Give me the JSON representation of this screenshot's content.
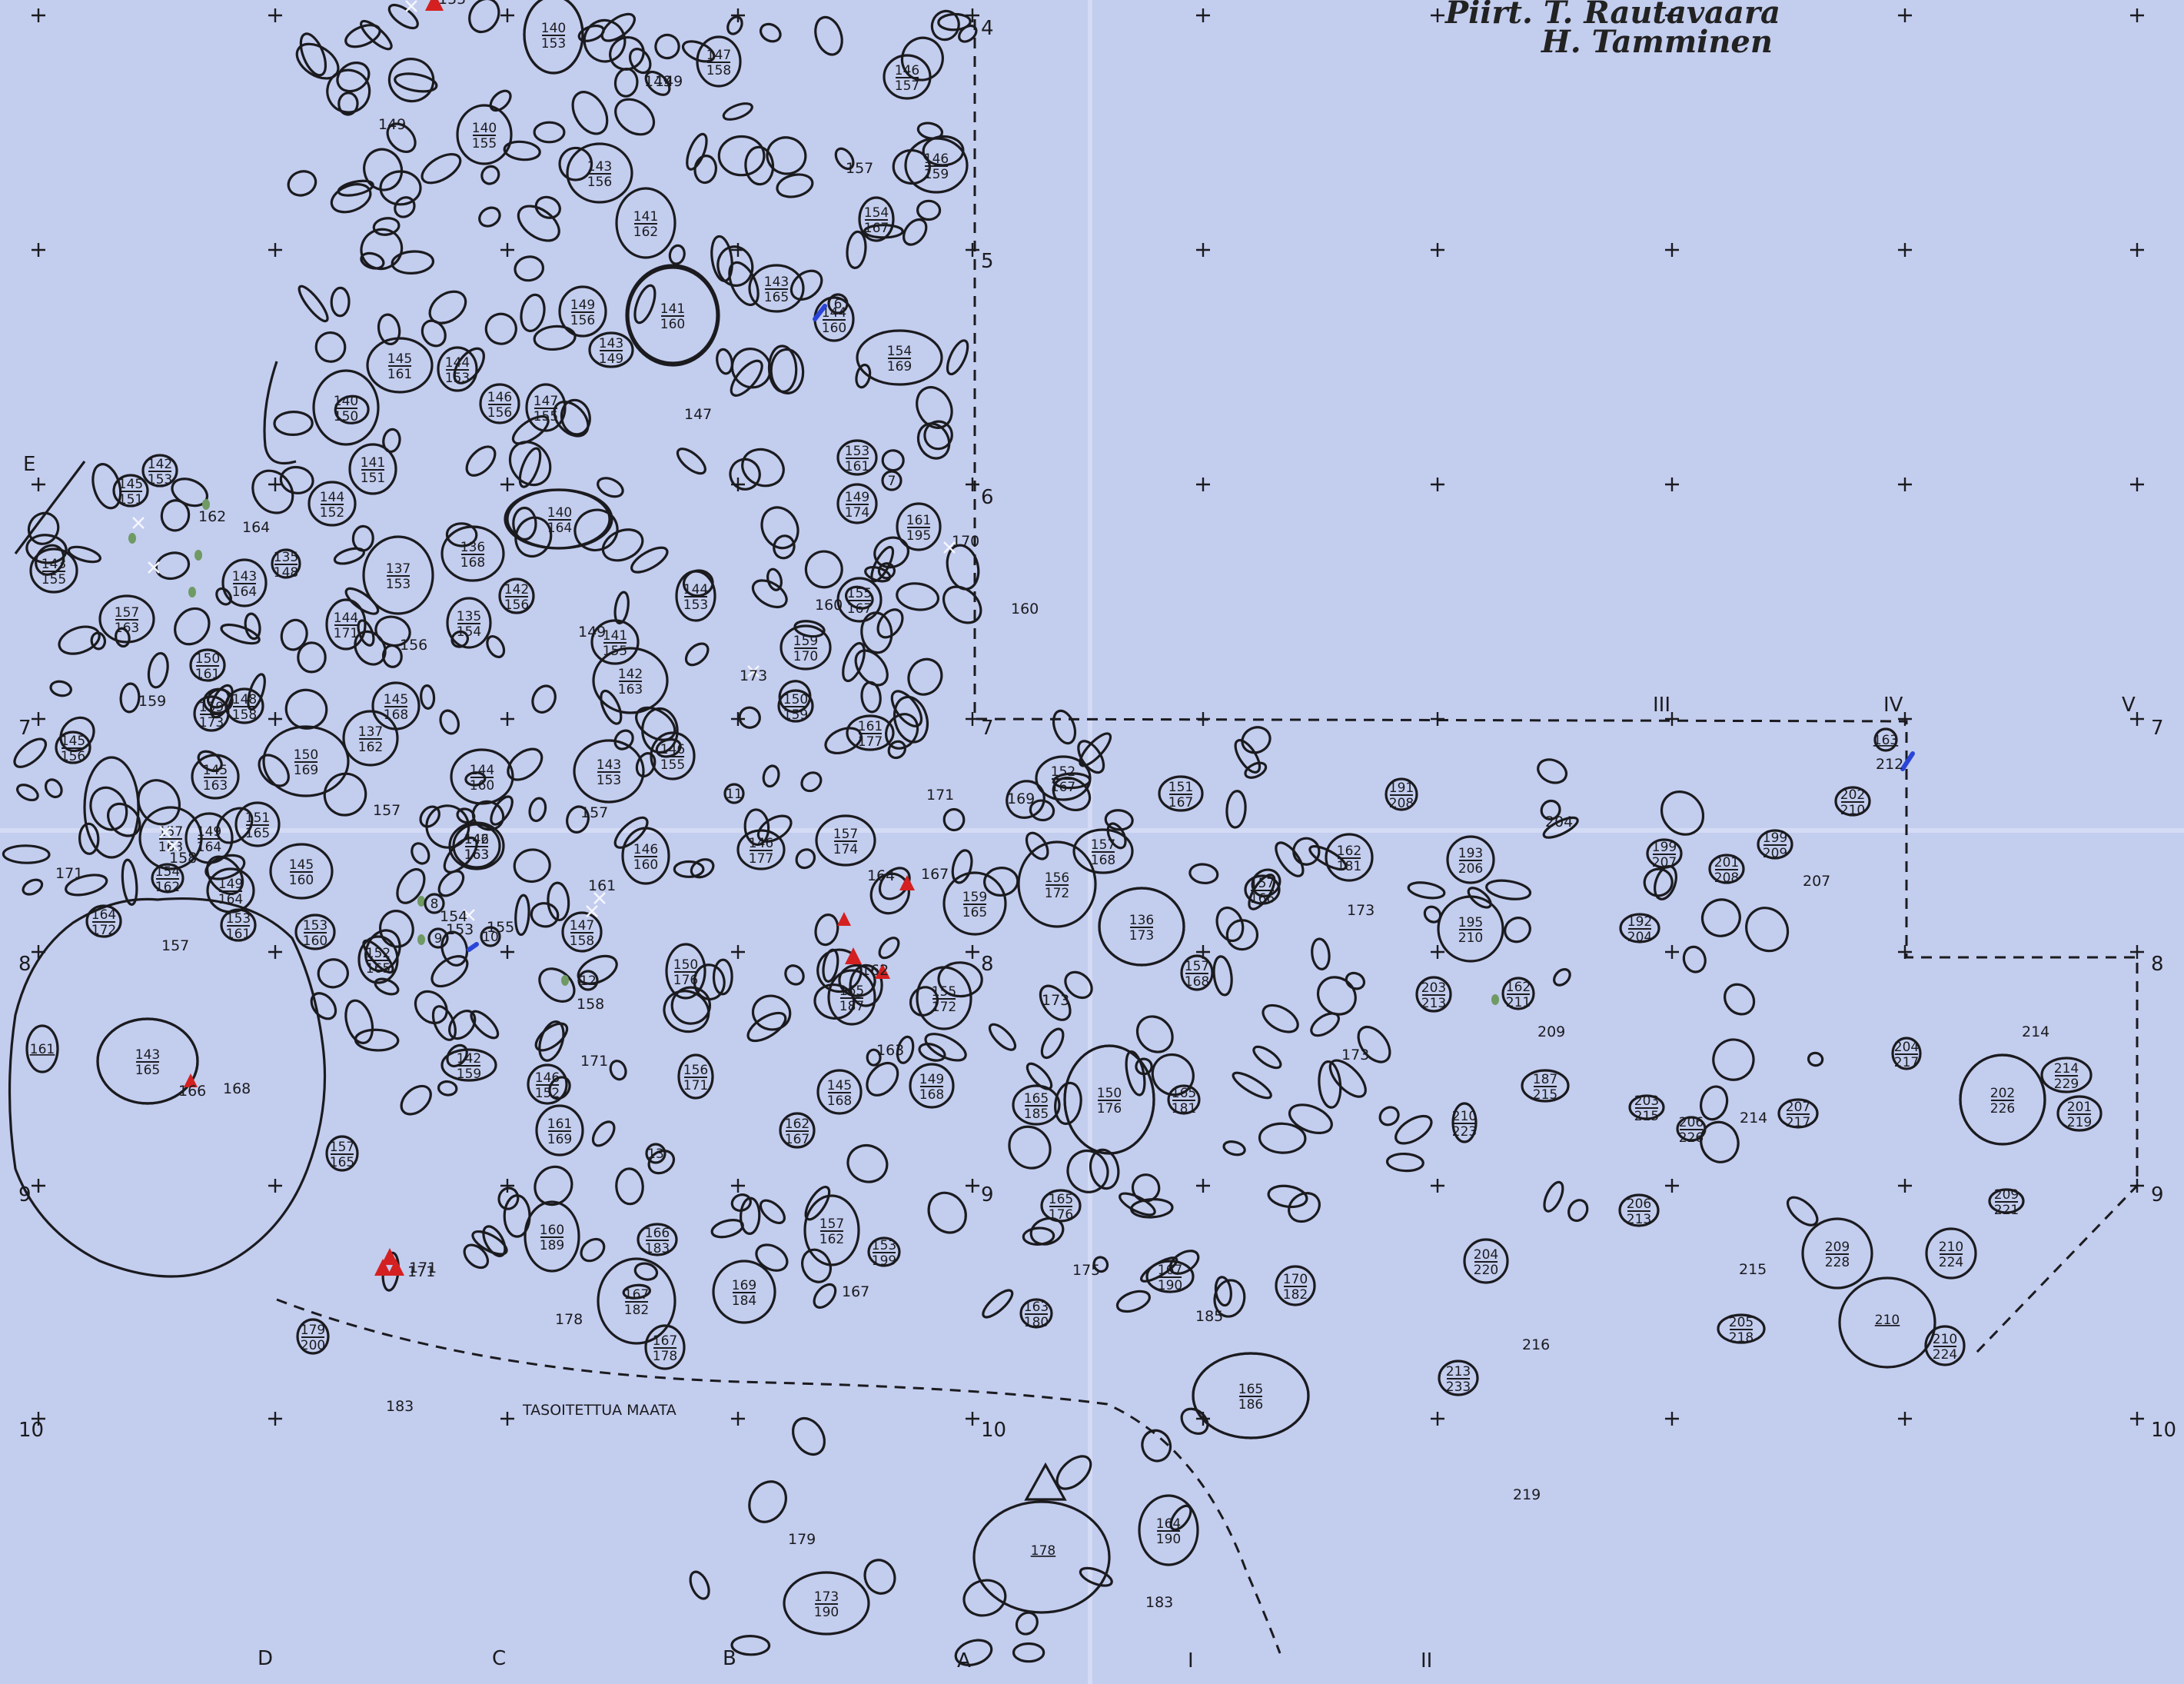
{
  "credits": {
    "line1": "Piirt. T. Rautavaara",
    "line2": "H. Tamminen"
  },
  "area_note": "TASOITETTUA MAATA",
  "colors": {
    "paper": "#c3cdee",
    "ink": "#1b1b1f",
    "red_marker": "#d42020",
    "blue_marker": "#2a44d8",
    "green_marker": "#6f9a64"
  },
  "grid_row_labels": [
    "4",
    "5",
    "6",
    "7",
    "8",
    "9",
    "10"
  ],
  "grid_col_labels": [
    "D",
    "C",
    "B",
    "A",
    "I",
    "II",
    "III",
    "IV",
    "V",
    "E"
  ],
  "stones": [
    {
      "n": "140",
      "d": "153"
    },
    {
      "n": "147",
      "d": "158"
    },
    {
      "n": "146",
      "d": "157"
    },
    {
      "n": "140",
      "d": "155"
    },
    {
      "n": "143",
      "d": "156"
    },
    {
      "n": "146",
      "d": "159"
    },
    {
      "n": "141",
      "d": "162"
    },
    {
      "n": "154",
      "d": "167"
    },
    {
      "n": "143",
      "d": "165"
    },
    {
      "n": "149",
      "d": "156"
    },
    {
      "n": "141",
      "d": "160"
    },
    {
      "n": "144",
      "d": "160"
    },
    {
      "n": "143",
      "d": "149"
    },
    {
      "n": "154",
      "d": "169"
    },
    {
      "n": "145",
      "d": "161"
    },
    {
      "n": "144",
      "d": "153"
    },
    {
      "n": "140",
      "d": "150"
    },
    {
      "n": "146",
      "d": "156"
    },
    {
      "n": "147",
      "d": "155"
    },
    {
      "n": "153",
      "d": "161"
    },
    {
      "n": "141",
      "d": "151"
    },
    {
      "n": "142",
      "d": "153"
    },
    {
      "n": "145",
      "d": "151"
    },
    {
      "n": "144",
      "d": "152"
    },
    {
      "n": "149",
      "d": "174"
    },
    {
      "n": "140",
      "d": "164"
    },
    {
      "n": "161",
      "d": "195"
    },
    {
      "n": "143",
      "d": "155"
    },
    {
      "n": "136",
      "d": "168"
    },
    {
      "n": "137",
      "d": "153"
    },
    {
      "n": "143",
      "d": "164"
    },
    {
      "n": "135",
      "d": "148"
    },
    {
      "n": "142",
      "d": "156"
    },
    {
      "n": "144",
      "d": "153"
    },
    {
      "n": "155",
      "d": "167"
    },
    {
      "n": "157",
      "d": "163"
    },
    {
      "n": "144",
      "d": "171"
    },
    {
      "n": "135",
      "d": "154"
    },
    {
      "n": "141",
      "d": "155"
    },
    {
      "n": "159",
      "d": "170"
    },
    {
      "n": "142",
      "d": "163"
    },
    {
      "n": "150",
      "d": "161"
    },
    {
      "n": "145",
      "d": "168"
    },
    {
      "n": "150",
      "d": "159"
    },
    {
      "n": "148",
      "d": "158"
    },
    {
      "n": "159",
      "d": "173"
    },
    {
      "n": "161",
      "d": "177"
    },
    {
      "n": "145",
      "d": "156"
    },
    {
      "n": "137",
      "d": "162"
    },
    {
      "n": "150",
      "d": "169"
    },
    {
      "n": "143",
      "d": "153"
    },
    {
      "n": "146",
      "d": "155"
    },
    {
      "n": "144",
      "d": "160"
    },
    {
      "n": "146",
      "d": "163"
    },
    {
      "n": "145",
      "d": "163"
    },
    {
      "n": "152",
      "d": "167"
    },
    {
      "n": "151",
      "d": "167"
    },
    {
      "n": "191",
      "d": "208"
    },
    {
      "n": "151",
      "d": "165"
    },
    {
      "n": "157",
      "d": "174"
    },
    {
      "n": "146",
      "d": "160"
    },
    {
      "n": "142",
      "d": "163"
    },
    {
      "n": "146",
      "d": "177"
    },
    {
      "n": "157",
      "d": "168"
    },
    {
      "n": "162",
      "d": "181"
    },
    {
      "n": "193",
      "d": "206"
    },
    {
      "n": "202",
      "d": "210"
    },
    {
      "n": "199",
      "d": "207"
    },
    {
      "n": "199",
      "d": "209"
    },
    {
      "n": "201",
      "d": "208"
    },
    {
      "n": "157",
      "d": "163"
    },
    {
      "n": "149",
      "d": "164"
    },
    {
      "n": "154",
      "d": "162"
    },
    {
      "n": "145",
      "d": "160"
    },
    {
      "n": "164",
      "d": "172"
    },
    {
      "n": "149",
      "d": "164"
    },
    {
      "n": "153",
      "d": "161"
    },
    {
      "n": "153",
      "d": "160"
    },
    {
      "n": "152",
      "d": "165"
    },
    {
      "n": "147",
      "d": "158"
    },
    {
      "n": "159",
      "d": "165"
    },
    {
      "n": "156",
      "d": "172"
    },
    {
      "n": "136",
      "d": "173"
    },
    {
      "n": "157",
      "d": "166"
    },
    {
      "n": "195",
      "d": "210"
    },
    {
      "n": "192",
      "d": "204"
    },
    {
      "n": "150",
      "d": "176"
    },
    {
      "n": "165",
      "d": "187"
    },
    {
      "n": "155",
      "d": "172"
    },
    {
      "n": "157",
      "d": "168"
    },
    {
      "n": "203",
      "d": "213"
    },
    {
      "n": "162",
      "d": "211"
    },
    {
      "n": "143",
      "d": "165"
    },
    {
      "n": "142",
      "d": "159"
    },
    {
      "n": "146",
      "d": "152"
    },
    {
      "n": "156",
      "d": "171"
    },
    {
      "n": "145",
      "d": "168"
    },
    {
      "n": "149",
      "d": "168"
    },
    {
      "n": "165",
      "d": "185"
    },
    {
      "n": "150",
      "d": "176"
    },
    {
      "n": "165",
      "d": "181"
    },
    {
      "n": "187",
      "d": "215"
    },
    {
      "n": "203",
      "d": "215"
    },
    {
      "n": "206",
      "d": "226"
    },
    {
      "n": "207",
      "d": "217"
    },
    {
      "n": "204",
      "d": "217"
    },
    {
      "n": "202",
      "d": "226"
    },
    {
      "n": "214",
      "d": "229"
    },
    {
      "n": "201",
      "d": "219"
    },
    {
      "n": "161",
      "d": "169"
    },
    {
      "n": "162",
      "d": "167"
    },
    {
      "n": "210",
      "d": "223"
    },
    {
      "n": "157",
      "d": "165"
    },
    {
      "n": "165",
      "d": "176"
    },
    {
      "n": "206",
      "d": "213"
    },
    {
      "n": "209",
      "d": "221"
    },
    {
      "n": "160",
      "d": "189"
    },
    {
      "n": "166",
      "d": "183"
    },
    {
      "n": "157",
      "d": "162"
    },
    {
      "n": "153",
      "d": "199"
    },
    {
      "n": "167",
      "d": "182"
    },
    {
      "n": "169",
      "d": "184"
    },
    {
      "n": "167",
      "d": "190"
    },
    {
      "n": "170",
      "d": "182"
    },
    {
      "n": "204",
      "d": "220"
    },
    {
      "n": "209",
      "d": "228"
    },
    {
      "n": "210",
      "d": "224"
    },
    {
      "n": "163",
      "d": "180"
    },
    {
      "n": "179",
      "d": "200"
    },
    {
      "n": "167",
      "d": "178"
    },
    {
      "n": "205",
      "d": "218"
    },
    {
      "n": "210",
      "d": "224"
    },
    {
      "n": "213",
      "d": "233"
    },
    {
      "n": "165",
      "d": "186"
    },
    {
      "n": "164",
      "d": "190"
    },
    {
      "n": "173",
      "d": "190"
    }
  ],
  "single_stones": [
    "161",
    "178",
    "210",
    "163"
  ],
  "circled_numbers": [
    "6",
    "7",
    "8",
    "9",
    "10",
    "11",
    "12",
    "13"
  ],
  "elevations": [
    "149",
    "149",
    "157",
    "147",
    "160",
    "156",
    "149",
    "173",
    "159",
    "171",
    "157",
    "157",
    "169",
    "204",
    "207",
    "173",
    "171",
    "157",
    "164",
    "162",
    "171",
    "168",
    "163",
    "173",
    "173",
    "209",
    "214",
    "214",
    "215",
    "216",
    "171",
    "178",
    "167",
    "175",
    "185",
    "183",
    "219",
    "179",
    "183",
    "160",
    "158",
    "154",
    "153",
    "155",
    "161",
    "158",
    "164",
    "162",
    "166",
    "171",
    "170",
    "167",
    "212",
    "149",
    "155"
  ]
}
